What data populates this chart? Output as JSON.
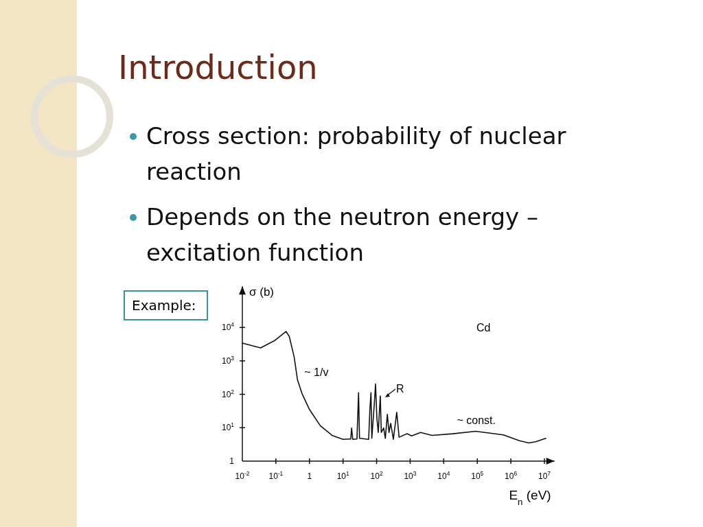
{
  "chart_data": {
    "type": "line",
    "title": "Introduction",
    "xlabel": "E$_{n}$ (eV)",
    "ylabel": "σ (b)",
    "log": "xy",
    "xlim": [
      0.01,
      20000000
    ],
    "ylim": [
      1,
      170000
    ],
    "xticks": [
      {
        "value": 0.01,
        "label": "10$^{-2}$"
      },
      {
        "value": 0.1,
        "label": "10$^{-1}$"
      },
      1,
      {
        "value": 10,
        "label": "10$^{1}$"
      },
      {
        "value": 100,
        "label": "10$^{2}$"
      },
      {
        "value": 1000,
        "label": "10$^{3}$"
      },
      {
        "value": 10000,
        "label": "10$^{4}$"
      },
      {
        "value": 100000,
        "label": "10$^{5}$"
      },
      {
        "value": 1000000,
        "label": "10$^{6}$"
      },
      {
        "value": 10000000,
        "label": "10$^{7}$"
      }
    ],
    "yticks": [
      1,
      {
        "value": 10,
        "label": "10$^{1}$"
      },
      {
        "value": 100,
        "label": "10$^{2}$"
      },
      {
        "value": 1000,
        "label": "10$^{3}$"
      },
      {
        "value": 10000,
        "label": "10$^{4}$"
      }
    ],
    "annotations": [
      "Cross section: probability of nuclear reaction",
      "Depends on the neutron energy – excitation function",
      "Example:",
      "Cd",
      "R",
      "~ const.",
      {
        "text": "~ 1/v",
        "x": 0.4,
        "y": 450
      }
    ],
    "series": [
      {
        "color": "#111111",
        "x": [
          0.01,
          0.035,
          0.09,
          0.2,
          0.25,
          0.35,
          0.44,
          0.6,
          1,
          2.1,
          4.7,
          10,
          17,
          18,
          19.5,
          26,
          29,
          31,
          58,
          63,
          68,
          72,
          85,
          93,
          102,
          112,
          129,
          138,
          162,
          182,
          209,
          234,
          263,
          316,
          398,
          468,
          813,
          1100,
          2040,
          4470,
          18600,
          89000,
          600000,
          1800000,
          3400000,
          5500000,
          11000000
        ],
        "values": [
          3400,
          2450,
          4000,
          7600,
          5400,
          1300,
          270,
          105,
          35,
          11.5,
          5.9,
          4.5,
          4.6,
          9.8,
          4.5,
          4.6,
          112,
          4.8,
          4.5,
          35,
          112,
          4.8,
          48,
          204,
          19,
          7.2,
          89,
          7.2,
          9.8,
          4.8,
          25,
          7.2,
          13.5,
          4.5,
          29,
          5.2,
          6.6,
          5.7,
          7.2,
          5.9,
          6.6,
          7.8,
          6.1,
          4.1,
          3.5,
          3.8,
          4.8
        ]
      }
    ]
  }
}
